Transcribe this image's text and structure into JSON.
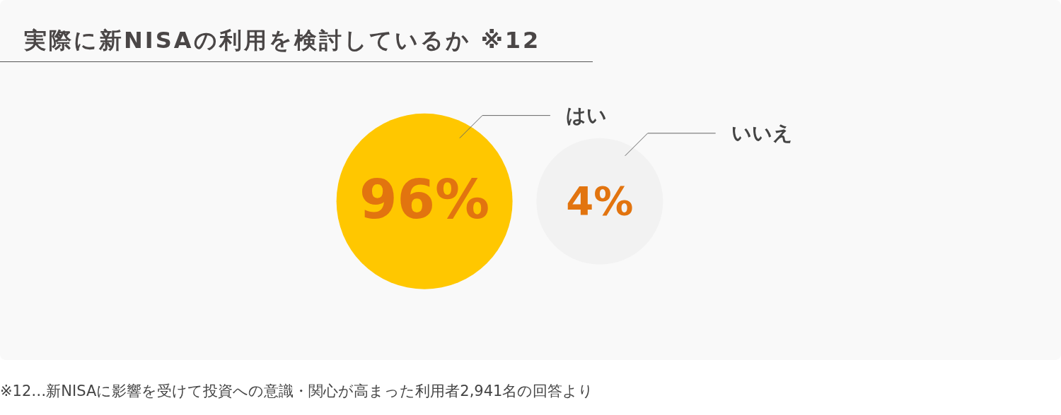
{
  "chart_data": {
    "type": "other",
    "title": "実際に新NISAの利用を検討しているか ※12",
    "categories": [
      "はい",
      "いいえ"
    ],
    "values": [
      96,
      4
    ],
    "colors": [
      "#ffc700",
      "#f2f2f2"
    ],
    "value_labels": [
      "96%",
      "4%"
    ],
    "annotations": [
      "※12…新NISAに影響を受けて投資への意識・関心が高まった利用者2,941名の回答より"
    ]
  }
}
